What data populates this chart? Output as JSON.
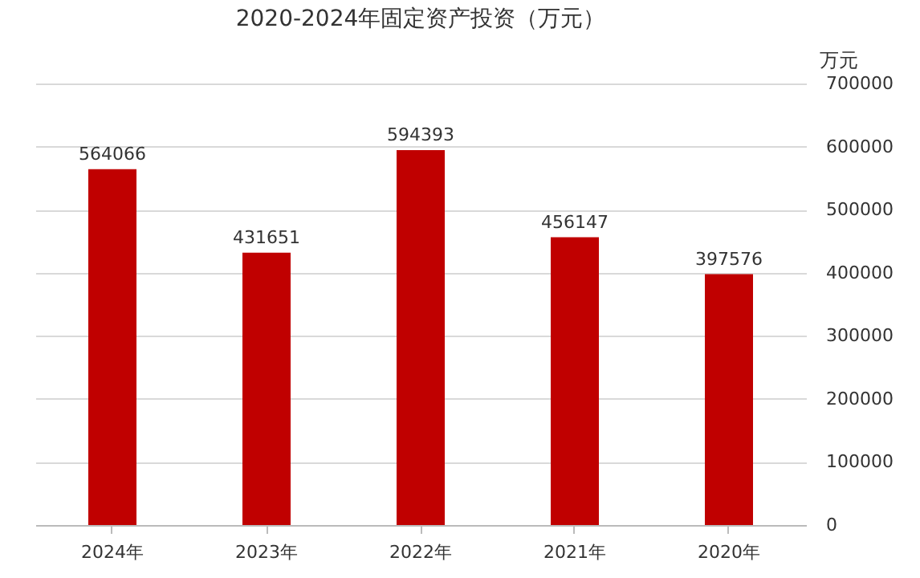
{
  "chart_data": {
    "type": "bar",
    "title": "2020-2024年固定资产投资（万元）",
    "ylabel": "万元",
    "categories": [
      "2024年",
      "2023年",
      "2022年",
      "2021年",
      "2020年"
    ],
    "values": [
      564066,
      431651,
      594393,
      456147,
      397576
    ],
    "color": "#c00000",
    "ylim": [
      0,
      700000
    ],
    "yticks": [
      0,
      100000,
      200000,
      300000,
      400000,
      500000,
      600000,
      700000
    ],
    "grid": "y",
    "data_labels": true
  }
}
